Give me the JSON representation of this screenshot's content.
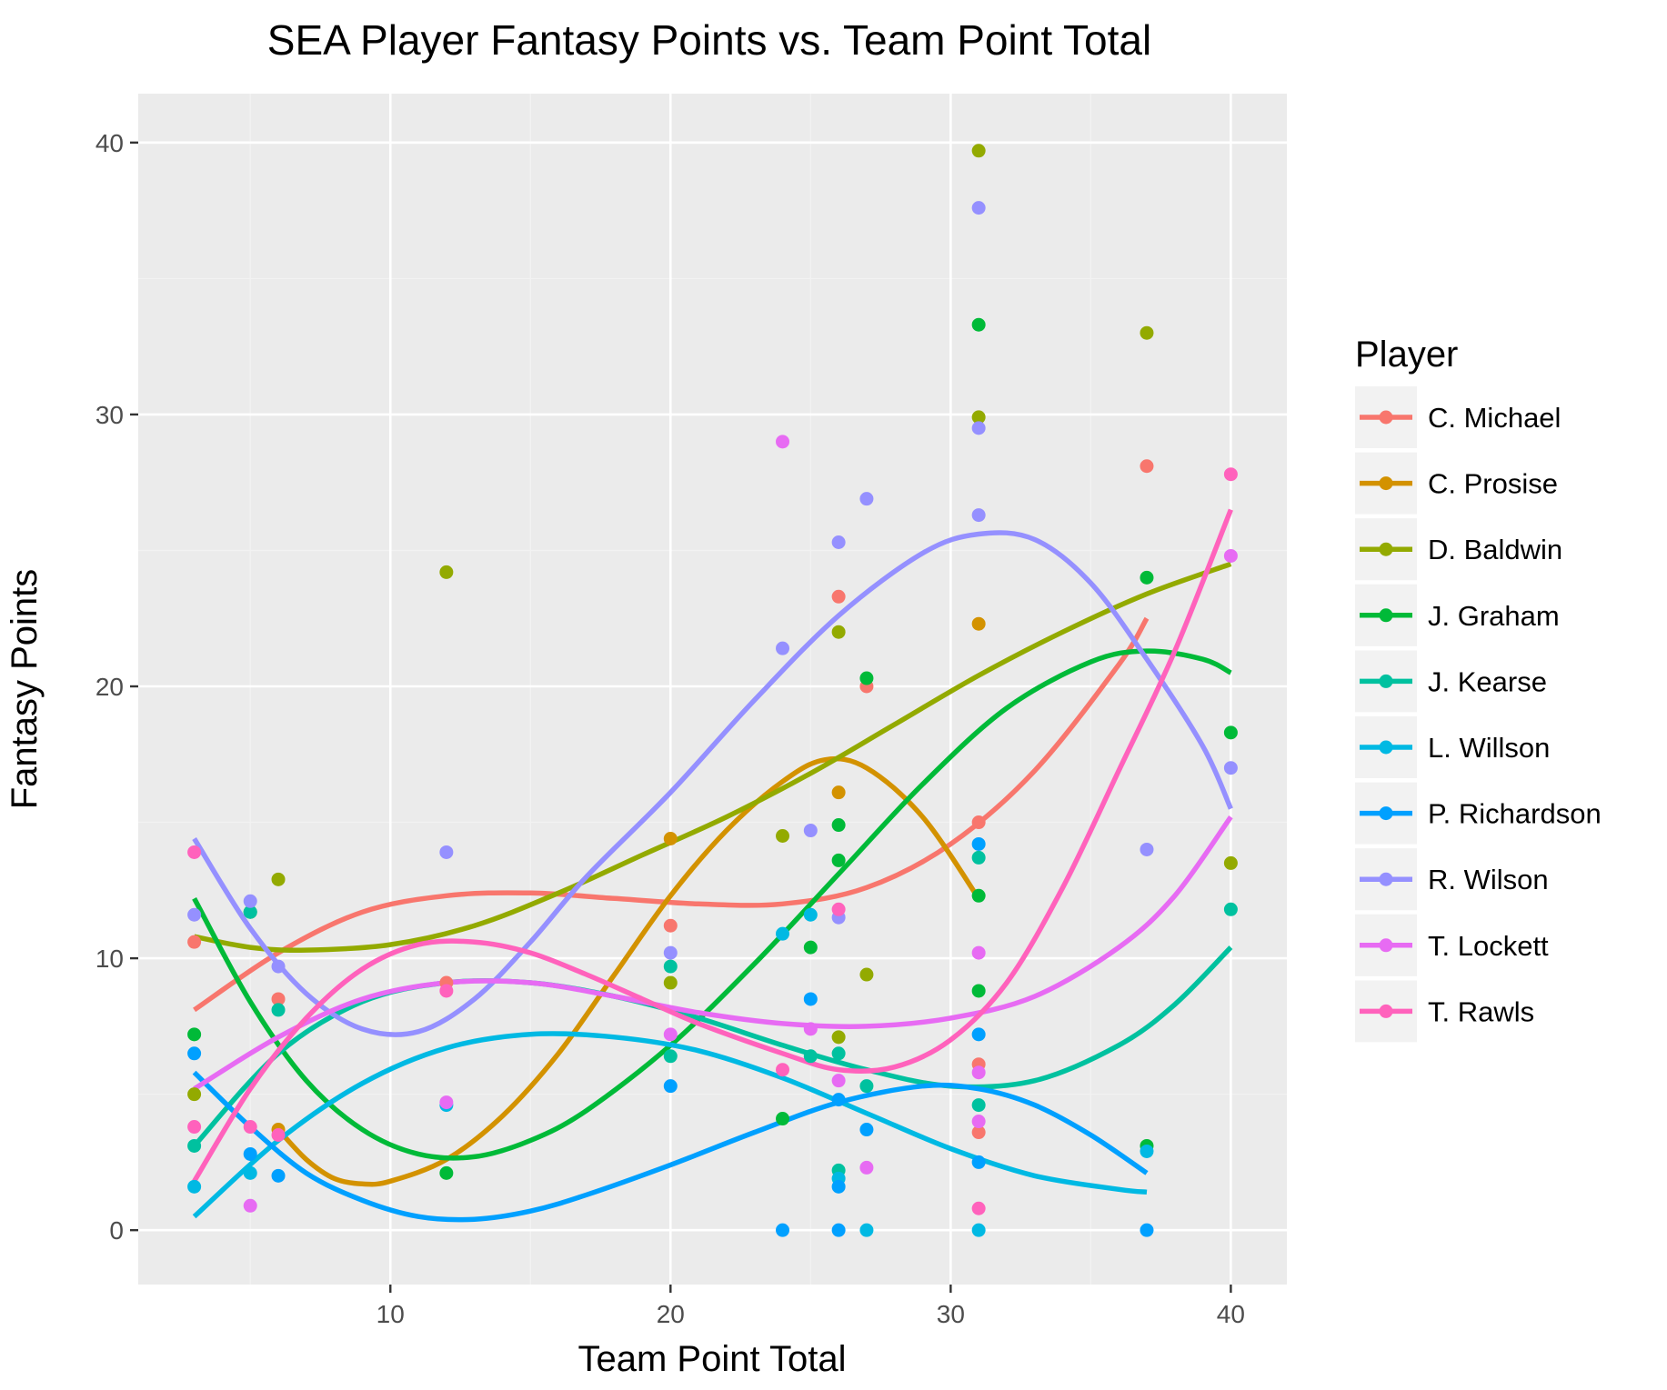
{
  "chart_data": {
    "type": "scatter",
    "title": "SEA Player Fantasy Points vs. Team Point Total",
    "xlabel": "Team Point Total",
    "ylabel": "Fantasy Points",
    "xlim": [
      1,
      42
    ],
    "ylim": [
      -2,
      41.8
    ],
    "x_ticks": [
      10,
      20,
      30,
      40
    ],
    "y_ticks": [
      0,
      10,
      20,
      30,
      40
    ],
    "grid": true,
    "trend": "loess smooth per series",
    "legend": {
      "title": "Player",
      "position": "right"
    },
    "series": [
      {
        "name": "C. Michael",
        "color": "#F8766D",
        "points": [
          [
            3,
            10.6
          ],
          [
            6,
            8.5
          ],
          [
            12,
            9.1
          ],
          [
            20,
            11.2
          ],
          [
            26,
            23.3
          ],
          [
            27,
            20.0
          ],
          [
            31,
            15.0
          ],
          [
            31,
            6.1
          ],
          [
            31,
            3.6
          ],
          [
            37,
            28.1
          ]
        ],
        "smooth": [
          [
            3,
            8.1
          ],
          [
            6,
            10.2
          ],
          [
            9,
            11.7
          ],
          [
            12,
            12.3
          ],
          [
            15,
            12.4
          ],
          [
            18,
            12.2
          ],
          [
            21,
            12.0
          ],
          [
            24,
            12.0
          ],
          [
            27,
            12.6
          ],
          [
            30,
            14.2
          ],
          [
            33,
            16.9
          ],
          [
            36,
            20.8
          ],
          [
            37,
            22.5
          ]
        ]
      },
      {
        "name": "C. Prosise",
        "color": "#D39200",
        "points": [
          [
            6,
            3.7
          ],
          [
            20,
            14.4
          ],
          [
            26,
            16.1
          ],
          [
            31,
            22.3
          ]
        ],
        "smooth": [
          [
            6,
            3.7
          ],
          [
            7,
            2.6
          ],
          [
            8,
            1.9
          ],
          [
            9,
            1.7
          ],
          [
            10,
            1.8
          ],
          [
            12,
            2.6
          ],
          [
            14,
            4.2
          ],
          [
            16,
            6.5
          ],
          [
            18,
            9.4
          ],
          [
            20,
            12.3
          ],
          [
            22,
            14.7
          ],
          [
            24,
            16.5
          ],
          [
            25.5,
            17.3
          ],
          [
            27,
            17.0
          ],
          [
            29,
            15.2
          ],
          [
            31,
            12.2
          ]
        ]
      },
      {
        "name": "D. Baldwin",
        "color": "#93AA00",
        "points": [
          [
            3,
            5.0
          ],
          [
            6,
            12.9
          ],
          [
            12,
            24.2
          ],
          [
            20,
            9.1
          ],
          [
            24,
            14.5
          ],
          [
            26,
            22.0
          ],
          [
            26,
            7.1
          ],
          [
            27,
            9.4
          ],
          [
            31,
            39.7
          ],
          [
            31,
            29.9
          ],
          [
            37,
            33.0
          ],
          [
            40,
            13.5
          ]
        ],
        "smooth": [
          [
            3,
            10.8
          ],
          [
            5,
            10.4
          ],
          [
            7,
            10.3
          ],
          [
            10,
            10.5
          ],
          [
            13,
            11.2
          ],
          [
            16,
            12.4
          ],
          [
            19,
            13.8
          ],
          [
            22,
            15.2
          ],
          [
            25,
            16.8
          ],
          [
            28,
            18.6
          ],
          [
            31,
            20.4
          ],
          [
            34,
            22.0
          ],
          [
            37,
            23.4
          ],
          [
            40,
            24.5
          ]
        ]
      },
      {
        "name": "J. Graham",
        "color": "#00BA38",
        "points": [
          [
            3,
            7.2
          ],
          [
            5,
            11.7
          ],
          [
            12,
            2.1
          ],
          [
            24,
            4.1
          ],
          [
            25,
            10.4
          ],
          [
            26,
            14.9
          ],
          [
            26,
            13.6
          ],
          [
            27,
            20.3
          ],
          [
            31,
            33.3
          ],
          [
            31,
            12.3
          ],
          [
            31,
            8.8
          ],
          [
            37,
            24.0
          ],
          [
            37,
            3.1
          ],
          [
            40,
            18.3
          ]
        ],
        "smooth": [
          [
            3,
            12.2
          ],
          [
            5,
            8.4
          ],
          [
            7,
            5.5
          ],
          [
            9,
            3.7
          ],
          [
            11,
            2.8
          ],
          [
            13,
            2.7
          ],
          [
            15,
            3.3
          ],
          [
            17,
            4.4
          ],
          [
            20,
            6.8
          ],
          [
            23,
            9.8
          ],
          [
            26,
            13.1
          ],
          [
            29,
            16.4
          ],
          [
            32,
            19.2
          ],
          [
            35,
            20.9
          ],
          [
            37,
            21.3
          ],
          [
            39,
            21.0
          ],
          [
            40,
            20.5
          ]
        ]
      },
      {
        "name": "J. Kearse",
        "color": "#00C19F",
        "points": [
          [
            3,
            3.1
          ],
          [
            5,
            11.7
          ],
          [
            6,
            8.1
          ],
          [
            20,
            9.7
          ],
          [
            20,
            6.4
          ],
          [
            25,
            6.4
          ],
          [
            26,
            6.5
          ],
          [
            26,
            2.2
          ],
          [
            27,
            5.3
          ],
          [
            31,
            13.7
          ],
          [
            31,
            4.6
          ],
          [
            40,
            11.8
          ]
        ],
        "smooth": [
          [
            3,
            3.1
          ],
          [
            6,
            6.5
          ],
          [
            9,
            8.4
          ],
          [
            12,
            9.1
          ],
          [
            15,
            9.1
          ],
          [
            18,
            8.6
          ],
          [
            21,
            7.8
          ],
          [
            24,
            6.8
          ],
          [
            27,
            5.9
          ],
          [
            30,
            5.3
          ],
          [
            33,
            5.5
          ],
          [
            36,
            6.8
          ],
          [
            38,
            8.3
          ],
          [
            40,
            10.4
          ]
        ]
      },
      {
        "name": "L. Willson",
        "color": "#00B9E3",
        "points": [
          [
            3,
            1.6
          ],
          [
            5,
            2.1
          ],
          [
            12,
            4.6
          ],
          [
            24,
            10.9
          ],
          [
            25,
            11.6
          ],
          [
            26,
            1.9
          ],
          [
            27,
            0.0
          ],
          [
            31,
            0.0
          ],
          [
            37,
            2.9
          ]
        ],
        "smooth": [
          [
            3,
            0.5
          ],
          [
            6,
            3.3
          ],
          [
            9,
            5.4
          ],
          [
            12,
            6.7
          ],
          [
            15,
            7.2
          ],
          [
            18,
            7.1
          ],
          [
            21,
            6.6
          ],
          [
            24,
            5.6
          ],
          [
            27,
            4.3
          ],
          [
            30,
            3.0
          ],
          [
            33,
            2.0
          ],
          [
            36,
            1.5
          ],
          [
            37,
            1.4
          ]
        ]
      },
      {
        "name": "P. Richardson",
        "color": "#00A0FF",
        "points": [
          [
            3,
            6.5
          ],
          [
            5,
            2.8
          ],
          [
            6,
            2.0
          ],
          [
            20,
            5.3
          ],
          [
            24,
            0.0
          ],
          [
            25,
            8.5
          ],
          [
            26,
            1.6
          ],
          [
            26,
            0.0
          ],
          [
            26,
            4.8
          ],
          [
            27,
            3.7
          ],
          [
            31,
            14.2
          ],
          [
            31,
            7.2
          ],
          [
            31,
            2.5
          ],
          [
            37,
            0.0
          ]
        ],
        "smooth": [
          [
            3,
            5.8
          ],
          [
            5,
            3.8
          ],
          [
            7,
            2.1
          ],
          [
            9,
            1.1
          ],
          [
            11,
            0.5
          ],
          [
            13,
            0.4
          ],
          [
            15,
            0.7
          ],
          [
            17,
            1.3
          ],
          [
            20,
            2.4
          ],
          [
            23,
            3.6
          ],
          [
            26,
            4.7
          ],
          [
            29,
            5.3
          ],
          [
            31,
            5.2
          ],
          [
            33,
            4.6
          ],
          [
            35,
            3.5
          ],
          [
            37,
            2.1
          ]
        ]
      },
      {
        "name": "R. Wilson",
        "color": "#9590FF",
        "points": [
          [
            3,
            11.6
          ],
          [
            5,
            12.1
          ],
          [
            6,
            9.7
          ],
          [
            12,
            13.9
          ],
          [
            20,
            10.2
          ],
          [
            24,
            21.4
          ],
          [
            25,
            14.7
          ],
          [
            26,
            25.3
          ],
          [
            26,
            11.5
          ],
          [
            27,
            26.9
          ],
          [
            31,
            37.6
          ],
          [
            31,
            29.5
          ],
          [
            31,
            26.3
          ],
          [
            37,
            14.0
          ],
          [
            40,
            17.0
          ]
        ],
        "smooth": [
          [
            3,
            14.4
          ],
          [
            5,
            11.1
          ],
          [
            7,
            8.7
          ],
          [
            9,
            7.4
          ],
          [
            11,
            7.3
          ],
          [
            13,
            8.5
          ],
          [
            15,
            10.6
          ],
          [
            17,
            13.0
          ],
          [
            20,
            16.1
          ],
          [
            23,
            19.5
          ],
          [
            26,
            22.6
          ],
          [
            29,
            24.9
          ],
          [
            31,
            25.6
          ],
          [
            33,
            25.4
          ],
          [
            35,
            23.8
          ],
          [
            37,
            21.0
          ],
          [
            39,
            17.8
          ],
          [
            40,
            15.5
          ]
        ]
      },
      {
        "name": "T. Lockett",
        "color": "#E76BF3",
        "points": [
          [
            5,
            0.9
          ],
          [
            12,
            4.7
          ],
          [
            20,
            7.2
          ],
          [
            24,
            29.0
          ],
          [
            25,
            7.4
          ],
          [
            26,
            5.5
          ],
          [
            27,
            2.3
          ],
          [
            31,
            10.2
          ],
          [
            31,
            5.8
          ],
          [
            31,
            4.0
          ],
          [
            40,
            24.8
          ]
        ],
        "smooth": [
          [
            3,
            5.2
          ],
          [
            6,
            7.1
          ],
          [
            9,
            8.5
          ],
          [
            12,
            9.1
          ],
          [
            15,
            9.1
          ],
          [
            18,
            8.6
          ],
          [
            21,
            8.0
          ],
          [
            24,
            7.6
          ],
          [
            27,
            7.5
          ],
          [
            30,
            7.8
          ],
          [
            33,
            8.6
          ],
          [
            36,
            10.4
          ],
          [
            38,
            12.3
          ],
          [
            40,
            15.2
          ]
        ]
      },
      {
        "name": "T. Rawls",
        "color": "#FF62BC",
        "points": [
          [
            3,
            13.9
          ],
          [
            3,
            3.8
          ],
          [
            5,
            3.8
          ],
          [
            6,
            3.5
          ],
          [
            12,
            8.8
          ],
          [
            24,
            5.9
          ],
          [
            26,
            11.8
          ],
          [
            31,
            0.8
          ],
          [
            40,
            27.8
          ]
        ],
        "smooth": [
          [
            3,
            1.8
          ],
          [
            5,
            5.2
          ],
          [
            7,
            7.8
          ],
          [
            9,
            9.6
          ],
          [
            11,
            10.5
          ],
          [
            13,
            10.6
          ],
          [
            15,
            10.2
          ],
          [
            17,
            9.4
          ],
          [
            19,
            8.5
          ],
          [
            21,
            7.6
          ],
          [
            24,
            6.5
          ],
          [
            26,
            5.9
          ],
          [
            28,
            6.0
          ],
          [
            30,
            7.0
          ],
          [
            32,
            9.1
          ],
          [
            34,
            12.6
          ],
          [
            36,
            16.9
          ],
          [
            38,
            21.3
          ],
          [
            40,
            26.5
          ]
        ]
      }
    ]
  }
}
